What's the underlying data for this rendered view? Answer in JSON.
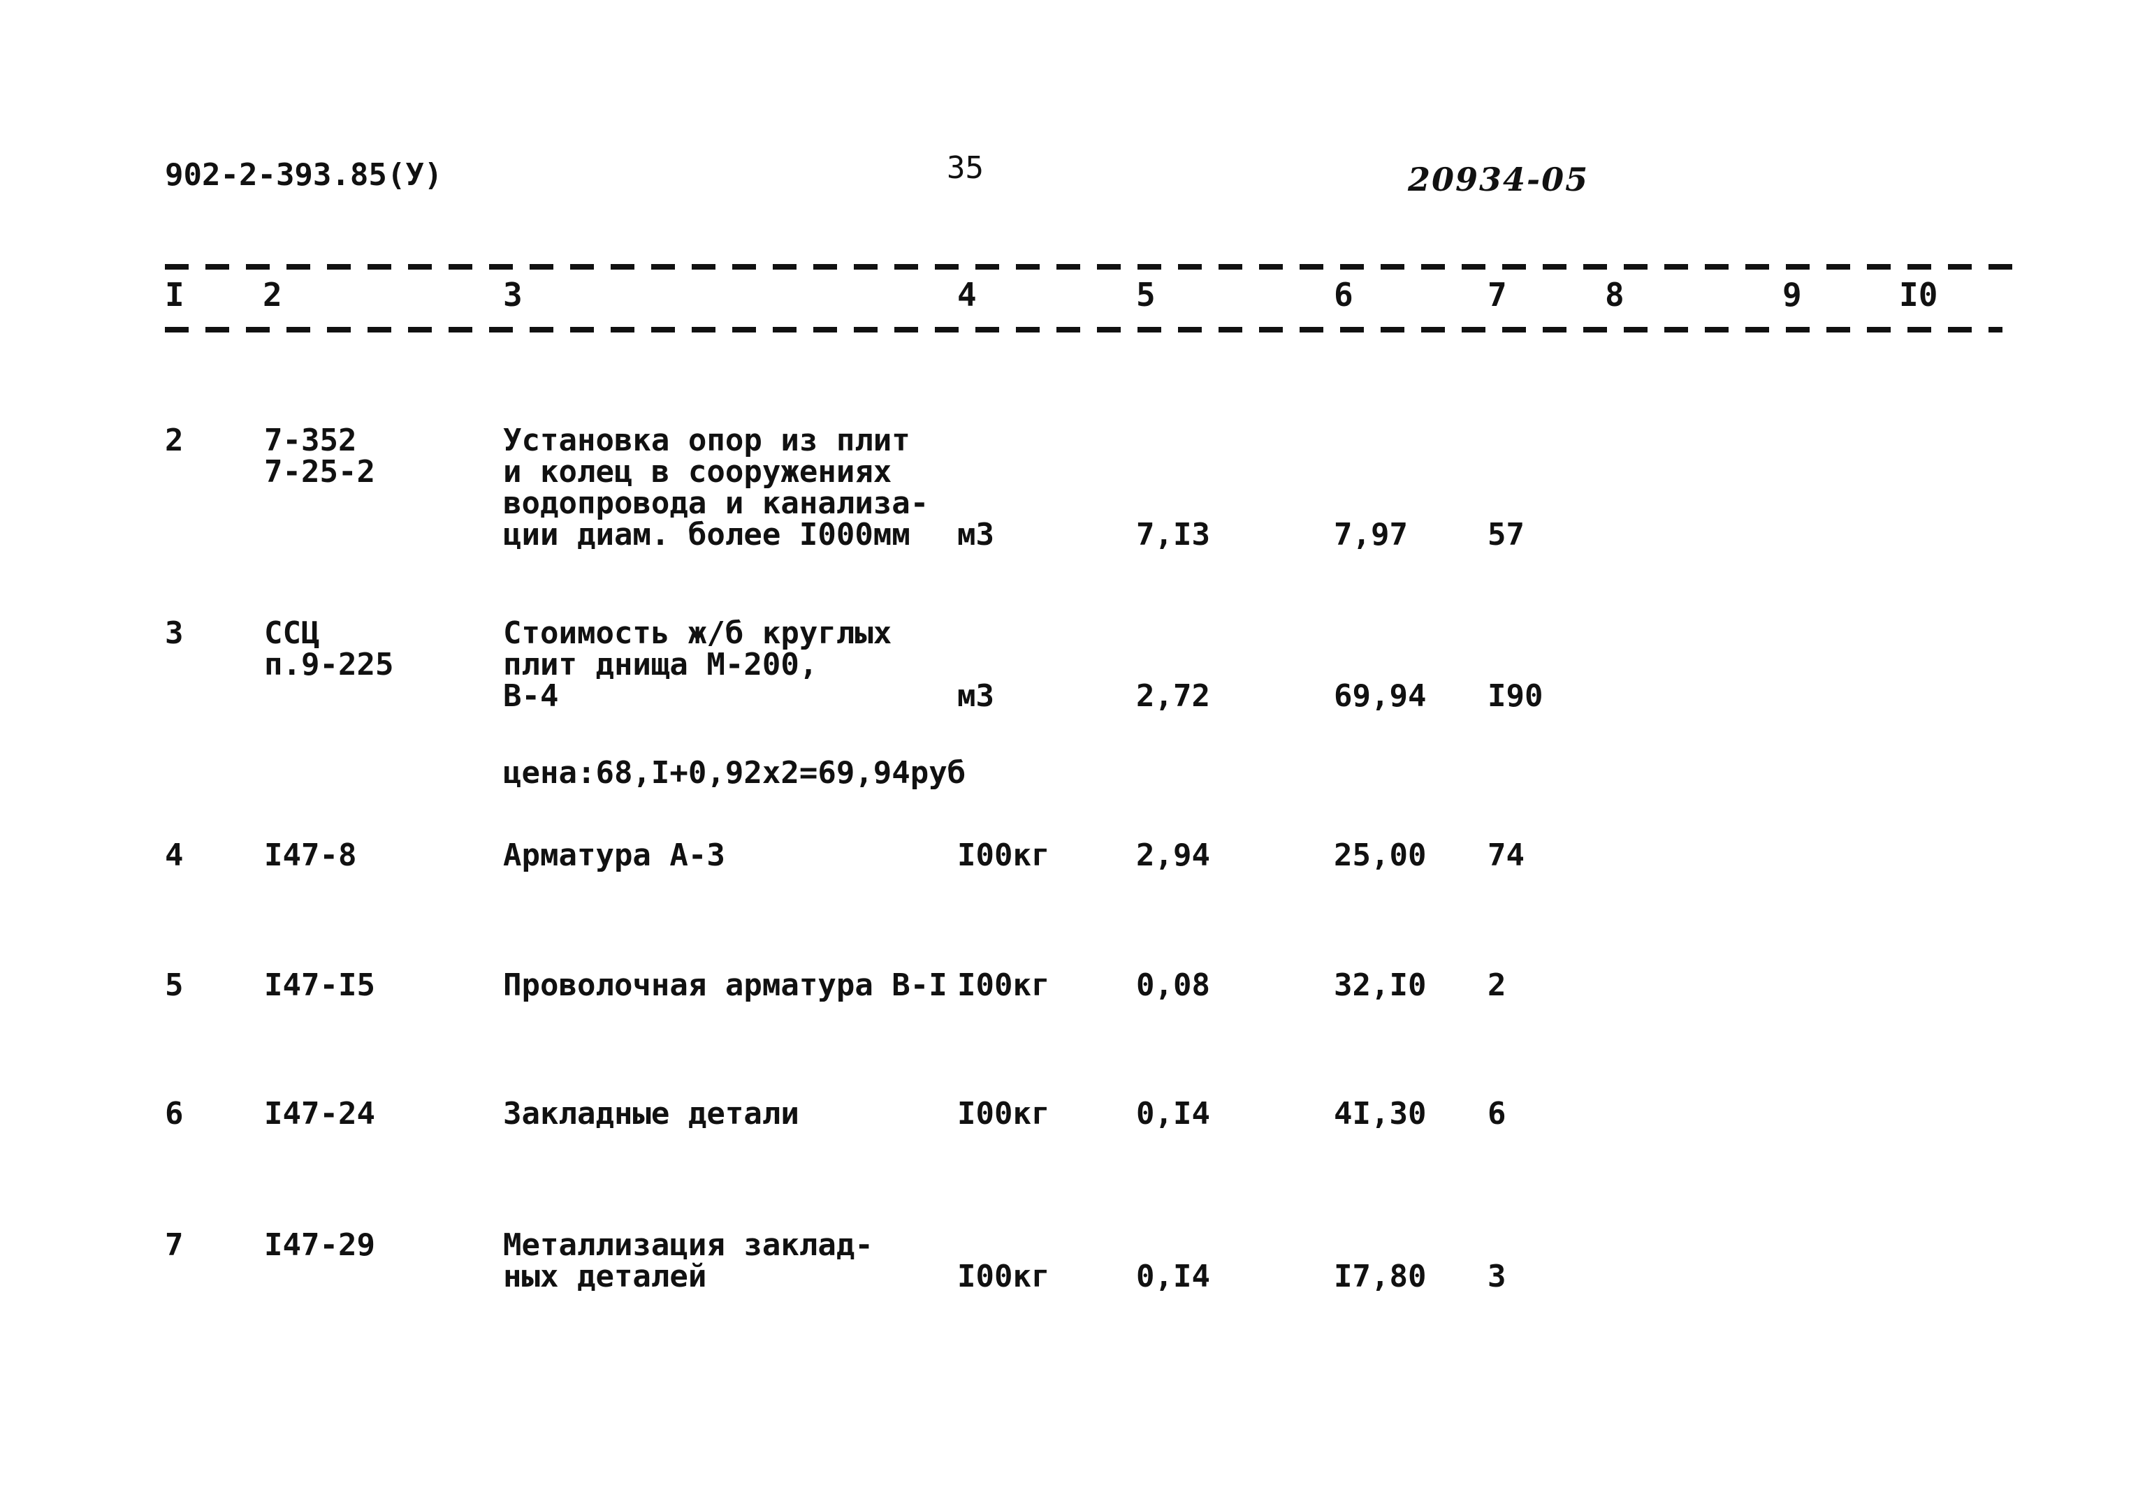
{
  "header": {
    "doc_code": "902-2-393.85(У)",
    "page_number": "35",
    "handwritten_number": "20934-05"
  },
  "columns": [
    "I",
    "2",
    "3",
    "4",
    "5",
    "6",
    "7",
    "8",
    "9",
    "I0"
  ],
  "rows": [
    {
      "num": "2",
      "code": "7-352\n7-25-2",
      "description": "Установка опор из плит\nи колец в сооружениях\nводопровода и канализа-\nции диам. более I000мм",
      "unit": "м3",
      "qty": "7,I3",
      "price": "7,97",
      "total": "57",
      "lines": 4
    },
    {
      "num": "3",
      "code": "ССЦ\nп.9-225",
      "description": "Стоимость ж/б круглых\nплит днища М-200,\nВ-4",
      "unit": "м3",
      "qty": "2,72",
      "price": "69,94",
      "total": "I90",
      "lines": 3,
      "note": "цена:68,I+0,92х2=69,94руб"
    },
    {
      "num": "4",
      "code": "I47-8",
      "description": "Арматура А-3",
      "unit": "I00кг",
      "qty": "2,94",
      "price": "25,00",
      "total": "74",
      "lines": 1
    },
    {
      "num": "5",
      "code": "I47-I5",
      "description": "Проволочная арматура В-I",
      "unit": "I00кг",
      "qty": "0,08",
      "price": "32,I0",
      "total": "2",
      "lines": 1
    },
    {
      "num": "6",
      "code": "I47-24",
      "description": "Закладные детали",
      "unit": "I00кг",
      "qty": "0,I4",
      "price": "4I,30",
      "total": "6",
      "lines": 1
    },
    {
      "num": "7",
      "code": "I47-29",
      "description": "Металлизация заклад-\nных деталей",
      "unit": "I00кг",
      "qty": "0,I4",
      "price": "I7,80",
      "total": "3",
      "lines": 2
    }
  ]
}
